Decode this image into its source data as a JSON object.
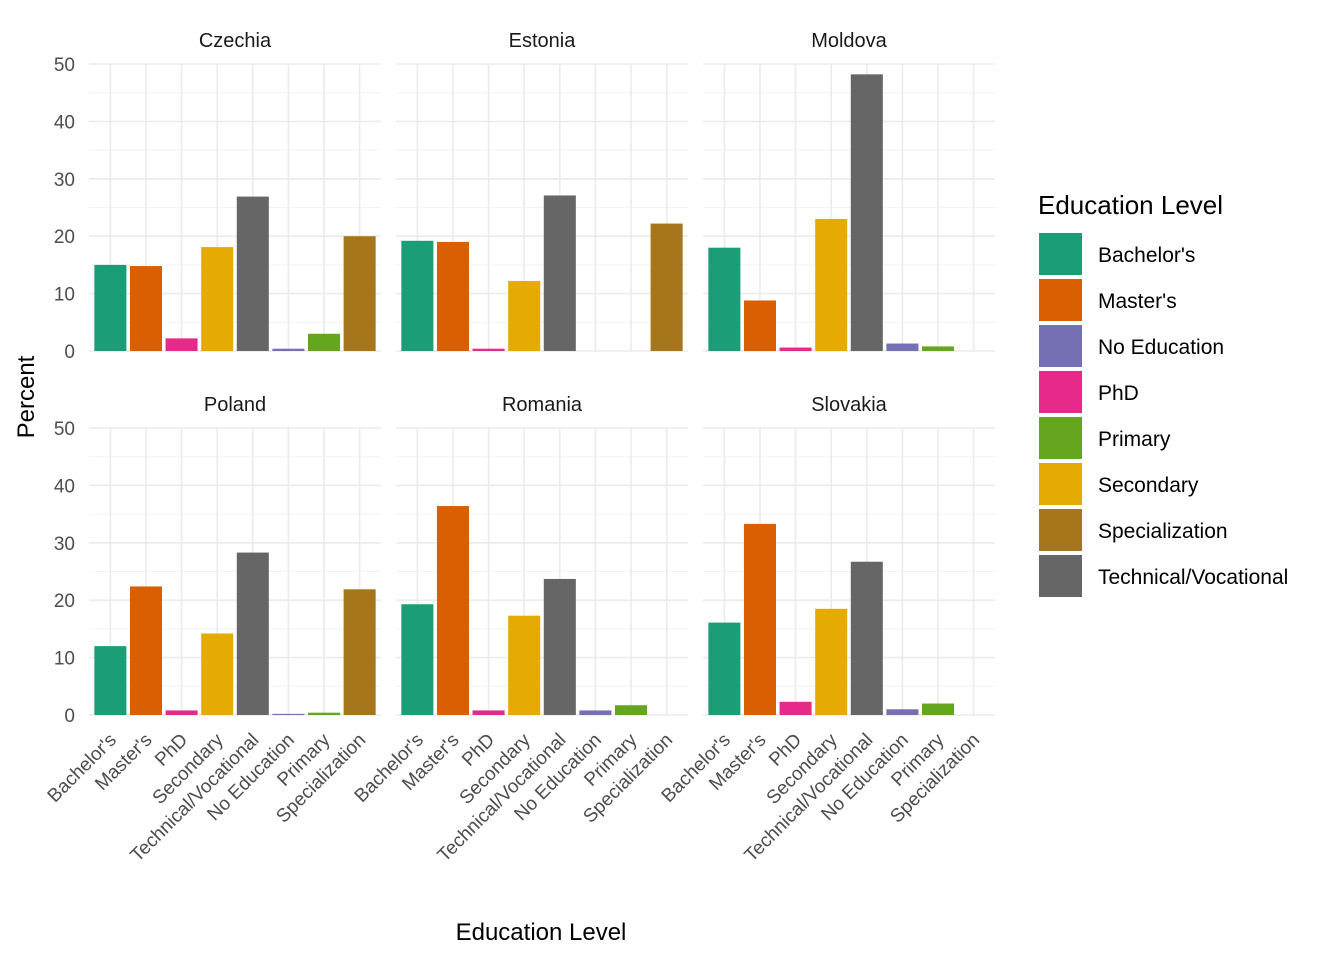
{
  "chart_data": {
    "type": "bar",
    "layout": "facet_wrap",
    "xlabel": "Education Level",
    "ylabel": "Percent",
    "ylim": [
      0,
      50
    ],
    "y_ticks": [
      0,
      10,
      20,
      30,
      40,
      50
    ],
    "categories": [
      "Bachelor's",
      "Master's",
      "PhD",
      "Secondary",
      "Technical/Vocational",
      "No Education",
      "Primary",
      "Specialization"
    ],
    "legend": {
      "title": "Education Level",
      "position": "right",
      "entries": [
        {
          "label": "Bachelor's",
          "color": "#1B9E77"
        },
        {
          "label": "Master's",
          "color": "#D95F02"
        },
        {
          "label": "No Education",
          "color": "#7570B3"
        },
        {
          "label": "PhD",
          "color": "#E7298A"
        },
        {
          "label": "Primary",
          "color": "#66A61E"
        },
        {
          "label": "Secondary",
          "color": "#E6AB02"
        },
        {
          "label": "Specialization",
          "color": "#A6761D"
        },
        {
          "label": "Technical/Vocational",
          "color": "#666666"
        }
      ]
    },
    "panels": [
      {
        "country": "Czechia",
        "values": [
          15.0,
          14.8,
          2.2,
          18.1,
          26.9,
          0.4,
          3.0,
          20.0
        ]
      },
      {
        "country": "Estonia",
        "values": [
          19.2,
          19.0,
          0.4,
          12.2,
          27.1,
          0,
          0,
          22.2
        ]
      },
      {
        "country": "Moldova",
        "values": [
          18.0,
          8.8,
          0.6,
          23.0,
          48.2,
          1.3,
          0.8,
          0
        ]
      },
      {
        "country": "Poland",
        "values": [
          12.0,
          22.4,
          0.8,
          14.2,
          28.3,
          0.2,
          0.4,
          21.9
        ]
      },
      {
        "country": "Romania",
        "values": [
          19.3,
          36.4,
          0.8,
          17.3,
          23.7,
          0.8,
          1.7,
          0
        ]
      },
      {
        "country": "Slovakia",
        "values": [
          16.1,
          33.3,
          2.3,
          18.5,
          26.7,
          1.0,
          2.0,
          0
        ]
      }
    ]
  }
}
